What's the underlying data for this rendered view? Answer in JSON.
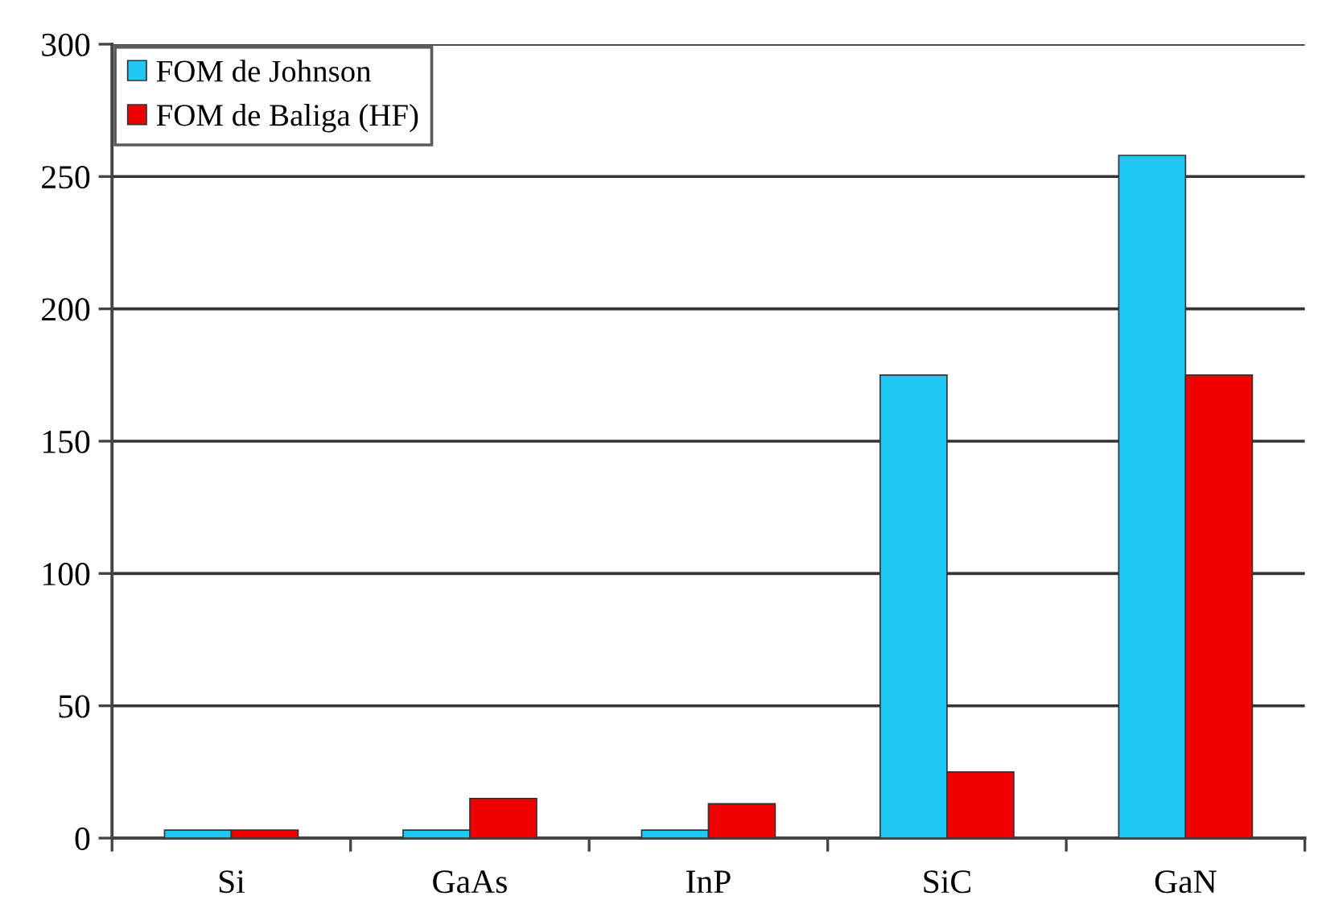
{
  "chart_data": {
    "type": "bar",
    "categories": [
      "Si",
      "GaAs",
      "InP",
      "SiC",
      "GaN"
    ],
    "series": [
      {
        "name": "FOM de Johnson",
        "color": "#1ec8f0",
        "values": [
          3,
          3,
          3,
          175,
          258
        ]
      },
      {
        "name": "FOM de Baliga (HF)",
        "color": "#f00000",
        "values": [
          3,
          15,
          13,
          25,
          175
        ]
      }
    ],
    "ylim": [
      0,
      300
    ],
    "yticks": [
      0,
      50,
      100,
      150,
      200,
      250,
      300
    ],
    "grid": "y",
    "legend": "top left"
  }
}
